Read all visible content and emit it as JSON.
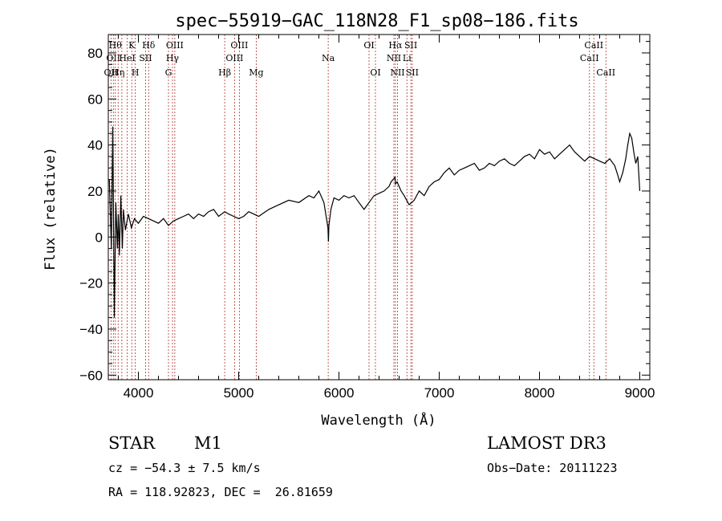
{
  "chart_data": {
    "type": "line",
    "title": "spec−55919−GAC_118N28_F1_sp08−186.fits",
    "xlabel": "Wavelength (Å)",
    "ylabel": "Flux (relative)",
    "xlim": [
      3700,
      9100
    ],
    "ylim": [
      -62,
      88
    ],
    "xticks": [
      4000,
      5000,
      6000,
      7000,
      8000,
      9000
    ],
    "yticks": [
      -60,
      -40,
      -20,
      0,
      20,
      40,
      60,
      80
    ],
    "ytick_labels": [
      "−60",
      "−40",
      "−20",
      "0",
      "20",
      "40",
      "60",
      "80"
    ],
    "series": [
      {
        "name": "flux",
        "x": [
          3710,
          3730,
          3745,
          3760,
          3775,
          3790,
          3800,
          3810,
          3825,
          3840,
          3850,
          3870,
          3900,
          3930,
          3960,
          4000,
          4050,
          4100,
          4150,
          4200,
          4250,
          4300,
          4350,
          4400,
          4450,
          4500,
          4550,
          4600,
          4650,
          4700,
          4750,
          4800,
          4861,
          4900,
          4950,
          5000,
          5050,
          5100,
          5150,
          5200,
          5300,
          5400,
          5500,
          5600,
          5700,
          5750,
          5800,
          5850,
          5890,
          5895,
          5900,
          5920,
          5950,
          6000,
          6050,
          6100,
          6150,
          6200,
          6250,
          6300,
          6350,
          6400,
          6450,
          6500,
          6520,
          6540,
          6560,
          6563,
          6580,
          6600,
          6620,
          6650,
          6700,
          6750,
          6800,
          6850,
          6900,
          6950,
          7000,
          7050,
          7100,
          7150,
          7200,
          7250,
          7300,
          7350,
          7400,
          7450,
          7500,
          7550,
          7600,
          7650,
          7700,
          7750,
          7800,
          7850,
          7900,
          7950,
          8000,
          8050,
          8100,
          8150,
          8200,
          8250,
          8300,
          8350,
          8400,
          8450,
          8500,
          8550,
          8600,
          8650,
          8700,
          8750,
          8780,
          8800,
          8830,
          8860,
          8880,
          8900,
          8920,
          8940,
          8960,
          8980,
          9000
        ],
        "y": [
          25,
          -5,
          48,
          -35,
          15,
          -5,
          10,
          -8,
          18,
          -5,
          12,
          3,
          10,
          4,
          8,
          6,
          9,
          8,
          7,
          6,
          8,
          5,
          7,
          8,
          9,
          10,
          8,
          10,
          9,
          11,
          12,
          9,
          11,
          10,
          9,
          8,
          9,
          11,
          10,
          9,
          12,
          14,
          16,
          15,
          18,
          17,
          20,
          15,
          4,
          -2,
          5,
          12,
          17,
          16,
          18,
          17,
          18,
          15,
          12,
          15,
          18,
          19,
          20,
          22,
          24,
          25,
          26,
          23,
          24,
          22,
          20,
          18,
          14,
          16,
          20,
          18,
          22,
          24,
          25,
          28,
          30,
          27,
          29,
          30,
          31,
          32,
          29,
          30,
          32,
          31,
          33,
          34,
          32,
          31,
          33,
          35,
          36,
          34,
          38,
          36,
          37,
          34,
          36,
          38,
          40,
          37,
          35,
          33,
          35,
          34,
          33,
          32,
          34,
          31,
          27,
          24,
          28,
          34,
          40,
          45,
          43,
          37,
          32,
          35,
          20
        ]
      }
    ],
    "emission_lines": [
      {
        "x": 3727,
        "label": "OII",
        "row": 2
      },
      {
        "x": 3750,
        "label": "OII",
        "row": 1
      },
      {
        "x": 3770,
        "label": "Hθ",
        "row": 0
      },
      {
        "x": 3798,
        "label": "Hη",
        "row": 2
      },
      {
        "x": 3835,
        "label": "",
        "row": 0
      },
      {
        "x": 3889,
        "label": "HeI",
        "row": 1
      },
      {
        "x": 3934,
        "label": "K",
        "row": 0
      },
      {
        "x": 3969,
        "label": "H",
        "row": 2
      },
      {
        "x": 4072,
        "label": "SII",
        "row": 1
      },
      {
        "x": 4102,
        "label": "Hδ",
        "row": 0
      },
      {
        "x": 4300,
        "label": "G",
        "row": 2
      },
      {
        "x": 4340,
        "label": "Hγ",
        "row": 1
      },
      {
        "x": 4363,
        "label": "OIII",
        "row": 0
      },
      {
        "x": 4861,
        "label": "Hβ",
        "row": 2
      },
      {
        "x": 4959,
        "label": "OIII",
        "row": 1
      },
      {
        "x": 5007,
        "label": "OIII",
        "row": 0
      },
      {
        "x": 5175,
        "label": "Mg",
        "row": 2
      },
      {
        "x": 5893,
        "label": "Na",
        "row": 1
      },
      {
        "x": 6300,
        "label": "OI",
        "row": 0
      },
      {
        "x": 6364,
        "label": "OI",
        "row": 2
      },
      {
        "x": 6548,
        "label": "NII",
        "row": 1
      },
      {
        "x": 6563,
        "label": "Hα",
        "row": 0
      },
      {
        "x": 6584,
        "label": "NII",
        "row": 2
      },
      {
        "x": 6678,
        "label": "Li",
        "row": 1
      },
      {
        "x": 6717,
        "label": "SII",
        "row": 0
      },
      {
        "x": 6731,
        "label": "SII",
        "row": 2
      },
      {
        "x": 8498,
        "label": "CaII",
        "row": 1
      },
      {
        "x": 8542,
        "label": "CaII",
        "row": 0
      },
      {
        "x": 8662,
        "label": "CaII",
        "row": 2
      }
    ]
  },
  "info": {
    "object_class": "STAR",
    "subclass": "M1",
    "survey": "LAMOST DR3",
    "cz": "cz = −54.3 ± 7.5 km/s",
    "obs_date": "Obs−Date: 20111223",
    "coords": "RA = 118.92823, DEC =  26.81659"
  },
  "colors": {
    "line_marker": "#b03030",
    "spectrum": "#000000"
  }
}
